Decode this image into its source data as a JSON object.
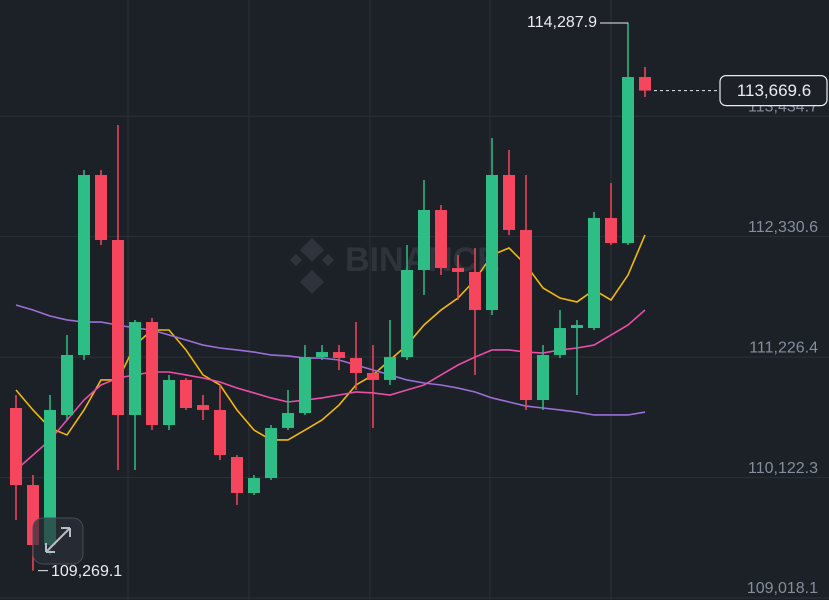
{
  "chart_data": {
    "type": "candlestick",
    "watermark": "BINANCE",
    "ylim": [
      109000,
      114500
    ],
    "yticks": [
      {
        "value": 113434.7,
        "label": "113,434.7"
      },
      {
        "value": 112330.6,
        "label": "112,330.6"
      },
      {
        "value": 111226.4,
        "label": "111,226.4"
      },
      {
        "value": 110122.3,
        "label": "110,122.3"
      },
      {
        "value": 109018.1,
        "label": "109,018.1"
      }
    ],
    "grid": true,
    "up_color": "#2ebd85",
    "down_color": "#f6465d",
    "candles": [
      {
        "open": 110760,
        "high": 110879,
        "low": 109733,
        "close": 110054
      },
      {
        "open": 110054,
        "high": 110146,
        "low": 109269.1,
        "close": 109504
      },
      {
        "open": 109504,
        "high": 110879,
        "low": 109413,
        "close": 110742
      },
      {
        "open": 110696,
        "high": 111429,
        "low": 110650,
        "close": 111246
      },
      {
        "open": 111246,
        "high": 112942,
        "low": 111200,
        "close": 112896
      },
      {
        "open": 112896,
        "high": 112942,
        "low": 112254,
        "close": 112300
      },
      {
        "open": 112300,
        "high": 113354,
        "low": 110192,
        "close": 110696
      },
      {
        "open": 110696,
        "high": 111567,
        "low": 110192,
        "close": 111548
      },
      {
        "open": 111548,
        "high": 111585,
        "low": 110558,
        "close": 110604
      },
      {
        "open": 110604,
        "high": 111063,
        "low": 110558,
        "close": 111017
      },
      {
        "open": 111017,
        "high": 111035,
        "low": 110742,
        "close": 110760
      },
      {
        "open": 110787,
        "high": 110879,
        "low": 110650,
        "close": 110742
      },
      {
        "open": 110742,
        "high": 110971,
        "low": 110283,
        "close": 110329
      },
      {
        "open": 110311,
        "high": 110329,
        "low": 109871,
        "close": 109981
      },
      {
        "open": 109981,
        "high": 110146,
        "low": 109962,
        "close": 110118
      },
      {
        "open": 110118,
        "high": 110604,
        "low": 110100,
        "close": 110577
      },
      {
        "open": 110577,
        "high": 110925,
        "low": 110558,
        "close": 110714
      },
      {
        "open": 110714,
        "high": 111337,
        "low": 110696,
        "close": 111227
      },
      {
        "open": 111227,
        "high": 111337,
        "low": 111200,
        "close": 111273
      },
      {
        "open": 111273,
        "high": 111337,
        "low": 111108,
        "close": 111218
      },
      {
        "open": 111218,
        "high": 111548,
        "low": 110925,
        "close": 111081
      },
      {
        "open": 111081,
        "high": 111337,
        "low": 110577,
        "close": 111017
      },
      {
        "open": 111017,
        "high": 111567,
        "low": 110971,
        "close": 111227
      },
      {
        "open": 111227,
        "high": 112254,
        "low": 111200,
        "close": 112025
      },
      {
        "open": 112025,
        "high": 112850,
        "low": 111796,
        "close": 112575
      },
      {
        "open": 112575,
        "high": 112621,
        "low": 111979,
        "close": 112043
      },
      {
        "open": 112043,
        "high": 112162,
        "low": 111750,
        "close": 112007
      },
      {
        "open": 112007,
        "high": 112227,
        "low": 111063,
        "close": 111658
      },
      {
        "open": 111658,
        "high": 113235,
        "low": 111612,
        "close": 112896
      },
      {
        "open": 112896,
        "high": 113125,
        "low": 112346,
        "close": 112392
      },
      {
        "open": 112392,
        "high": 112896,
        "low": 110742,
        "close": 110833
      },
      {
        "open": 110833,
        "high": 111337,
        "low": 110742,
        "close": 111246
      },
      {
        "open": 111246,
        "high": 111658,
        "low": 111218,
        "close": 111493
      },
      {
        "open": 111493,
        "high": 111567,
        "low": 110879,
        "close": 111521
      },
      {
        "open": 111493,
        "high": 112557,
        "low": 111475,
        "close": 112502
      },
      {
        "open": 112502,
        "high": 112822,
        "low": 112254,
        "close": 112272
      },
      {
        "open": 112272,
        "high": 114287.9,
        "low": 112254,
        "close": 113794
      },
      {
        "open": 113794,
        "high": 113886,
        "low": 113611,
        "close": 113669.6
      }
    ],
    "ma": [
      {
        "color": "#f0b90b",
        "values": [
          110925,
          110742,
          110577,
          110513,
          110742,
          111017,
          111017,
          111337,
          111475,
          111475,
          111292,
          111063,
          110971,
          110742,
          110558,
          110467,
          110467,
          110558,
          110650,
          110787,
          110971,
          111063,
          111200,
          111337,
          111521,
          111658,
          111768,
          111933,
          112162,
          112227,
          112071,
          111860,
          111768,
          111732,
          111842,
          111750,
          111979,
          112346
        ]
      },
      {
        "color": "#e94fa8",
        "values": [
          110192,
          110329,
          110467,
          110650,
          110833,
          110971,
          111035,
          111063,
          111090,
          111090,
          111063,
          111035,
          110998,
          110943,
          110898,
          110852,
          110815,
          110833,
          110852,
          110879,
          110907,
          110898,
          110879,
          110925,
          110971,
          111063,
          111154,
          111227,
          111292,
          111292,
          111273,
          111264,
          111292,
          111310,
          111337,
          111429,
          111521,
          111658
        ]
      },
      {
        "color": "#9b6fd6",
        "values": [
          111704,
          111658,
          111603,
          111567,
          111548,
          111548,
          111521,
          111493,
          111475,
          111429,
          111383,
          111337,
          111310,
          111292,
          111273,
          111246,
          111237,
          111218,
          111218,
          111200,
          111154,
          111108,
          111063,
          111017,
          110989,
          110971,
          110943,
          110907,
          110852,
          110815,
          110778,
          110760,
          110742,
          110723,
          110696,
          110696,
          110696,
          110723
        ]
      }
    ],
    "high_label": {
      "value": 114287.9,
      "label": "114,287.9"
    },
    "low_label": {
      "value": 109269.1,
      "label": "109,269.1"
    },
    "last_price": {
      "value": 113669.6,
      "label": "113,669.6"
    }
  }
}
